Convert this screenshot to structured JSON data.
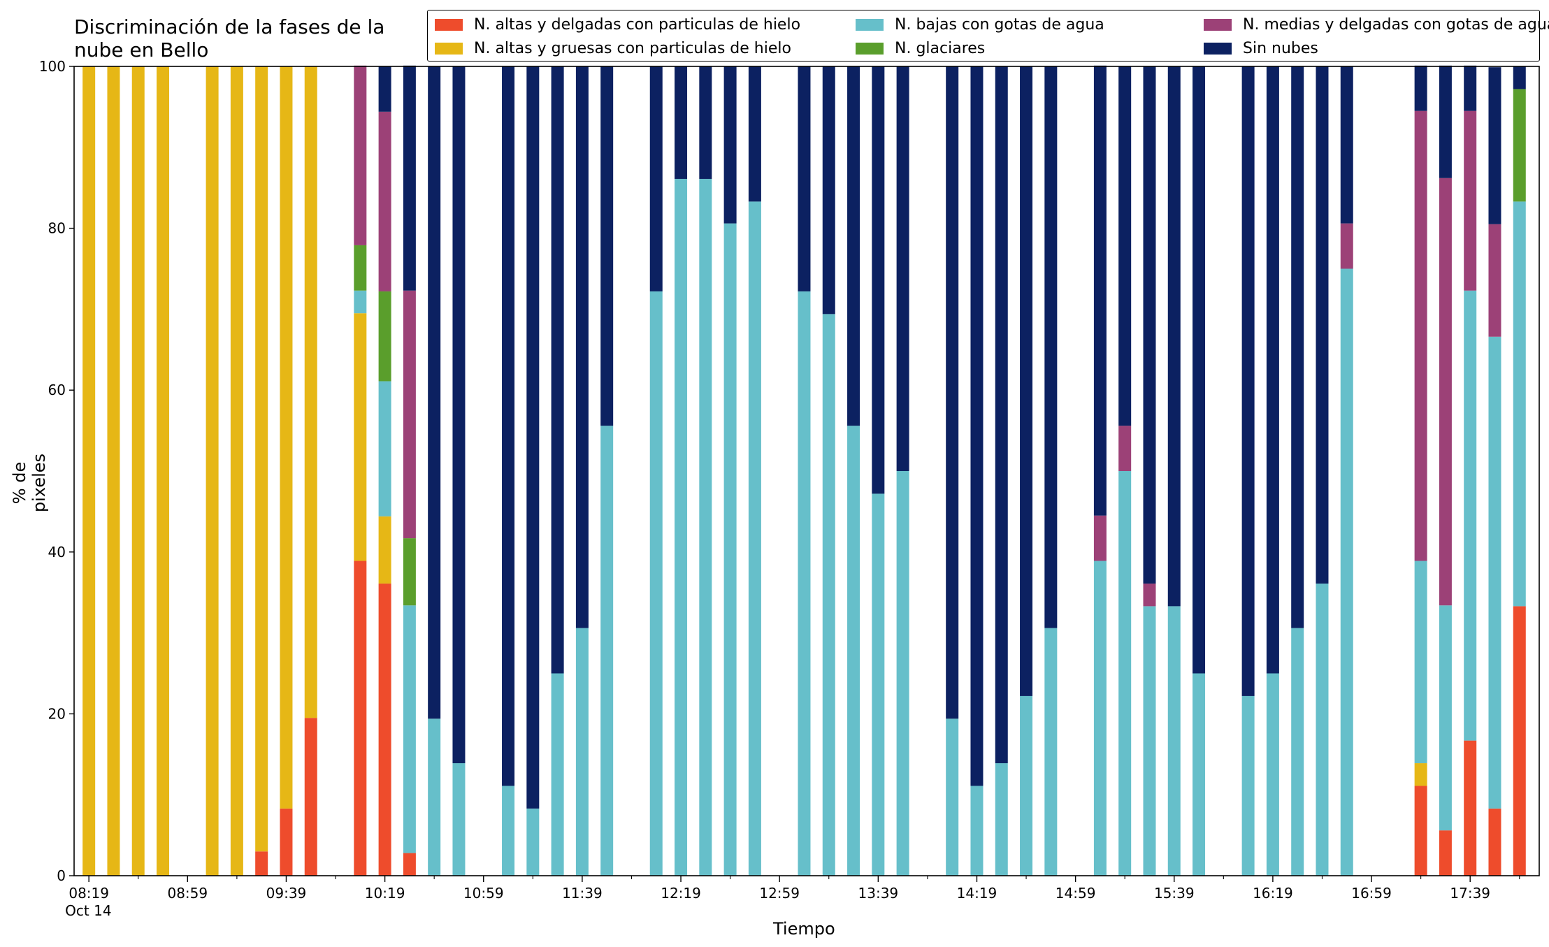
{
  "chart_data": {
    "type": "bar",
    "stacked": true,
    "title": "Discriminación de la fases de la\nnube en Bello",
    "xlabel": "Tiempo",
    "ylabel": "% de pixeles",
    "ylim": [
      0,
      100
    ],
    "yticks": [
      0,
      20,
      40,
      60,
      80,
      100
    ],
    "xticks": [
      "08:19\nOct 14",
      "08:59",
      "09:39",
      "10:19",
      "10:59",
      "11:39",
      "12:19",
      "12:59",
      "13:39",
      "14:19",
      "14:59",
      "15:39",
      "16:19",
      "16:59",
      "17:39"
    ],
    "grid": false,
    "legend_position": "top-right",
    "x_time_minutes": [
      499,
      509,
      519,
      529,
      539,
      549,
      559,
      569,
      579,
      589,
      599,
      609,
      619,
      629,
      639,
      649,
      659,
      669,
      679,
      689,
      699,
      709,
      719,
      729,
      739,
      749,
      759,
      769,
      779,
      789,
      799,
      809,
      819,
      829,
      839,
      849,
      859,
      869,
      879,
      889,
      899,
      909,
      919,
      929,
      939,
      949,
      959,
      969,
      979,
      989,
      999,
      1009,
      1019,
      1029,
      1039,
      1049,
      1059,
      1069,
      1079
    ],
    "series": [
      {
        "name": "N. altas y delgadas con particulas de hielo",
        "color": "#ee4c2c",
        "values": [
          0,
          0,
          0,
          0,
          0,
          0,
          0,
          3,
          8.3,
          19.5,
          0,
          38.9,
          36.1,
          2.8,
          0,
          0,
          0,
          0,
          0,
          0,
          0,
          0,
          0,
          0,
          0,
          0,
          0,
          0,
          0,
          0,
          0,
          0,
          0,
          0,
          0,
          0,
          0,
          0,
          0,
          0,
          0,
          0,
          0,
          0,
          0,
          0,
          0,
          0,
          0,
          0,
          0,
          0,
          0,
          0,
          11.1,
          5.6,
          16.7,
          8.3,
          33.3
        ]
      },
      {
        "name": "N. altas y gruesas con particulas de hielo",
        "color": "#e6b716",
        "values": [
          100,
          100,
          100,
          100,
          0,
          100,
          100,
          97,
          91.7,
          80.5,
          0,
          30.6,
          8.3,
          0,
          0,
          0,
          0,
          0,
          0,
          0,
          0,
          0,
          0,
          0,
          0,
          0,
          0,
          0,
          0,
          0,
          0,
          0,
          0,
          0,
          0,
          0,
          0,
          0,
          0,
          0,
          0,
          0,
          0,
          0,
          0,
          0,
          0,
          0,
          0,
          0,
          0,
          0,
          0,
          0,
          2.8,
          0,
          0,
          0,
          0
        ]
      },
      {
        "name": "N. bajas con gotas de agua",
        "color": "#66bfca",
        "values": [
          0,
          0,
          0,
          0,
          0,
          0,
          0,
          0,
          0,
          0,
          0,
          2.8,
          16.7,
          30.6,
          19.4,
          13.9,
          0,
          11.1,
          8.3,
          25,
          30.6,
          55.6,
          0,
          72.2,
          86.1,
          86.1,
          80.6,
          83.3,
          0,
          72.2,
          69.4,
          55.6,
          47.2,
          50,
          0,
          19.4,
          11.1,
          13.9,
          22.2,
          30.6,
          0,
          38.9,
          50,
          33.3,
          33.3,
          25,
          0,
          22.2,
          25,
          30.6,
          36.1,
          75,
          0,
          0,
          25,
          27.8,
          55.6,
          58.3,
          50
        ]
      },
      {
        "name": "N. glaciares",
        "color": "#5a9e2c",
        "values": [
          0,
          0,
          0,
          0,
          0,
          0,
          0,
          0,
          0,
          0,
          0,
          5.6,
          11.1,
          8.3,
          0,
          0,
          0,
          0,
          0,
          0,
          0,
          0,
          0,
          0,
          0,
          0,
          0,
          0,
          0,
          0,
          0,
          0,
          0,
          0,
          0,
          0,
          0,
          0,
          0,
          0,
          0,
          0,
          0,
          0,
          0,
          0,
          0,
          0,
          0,
          0,
          0,
          0,
          0,
          0,
          0,
          0,
          0,
          0,
          13.9
        ]
      },
      {
        "name": "N. medias y delgadas con gotas de agua",
        "color": "#9c4177",
        "values": [
          0,
          0,
          0,
          0,
          0,
          0,
          0,
          0,
          0,
          0,
          0,
          22.2,
          22.2,
          30.6,
          0,
          0,
          0,
          0,
          0,
          0,
          0,
          0,
          0,
          0,
          0,
          0,
          0,
          0,
          0,
          0,
          0,
          0,
          0,
          0,
          0,
          0,
          0,
          0,
          0,
          0,
          0,
          5.6,
          5.6,
          2.8,
          0,
          0,
          0,
          0,
          0,
          0,
          0,
          5.6,
          0,
          0,
          55.6,
          52.8,
          22.2,
          13.9,
          0
        ]
      },
      {
        "name": "Sin nubes",
        "color": "#0c2161",
        "values": [
          0,
          0,
          0,
          0,
          0,
          0,
          0,
          0,
          0,
          0,
          0,
          0,
          5.6,
          27.8,
          80.6,
          86.1,
          0,
          88.9,
          91.7,
          75,
          69.4,
          44.4,
          0,
          27.8,
          13.9,
          13.9,
          19.4,
          16.7,
          0,
          27.8,
          30.6,
          44.4,
          52.8,
          50,
          0,
          80.6,
          88.9,
          86.1,
          77.8,
          69.4,
          0,
          55.6,
          44.4,
          63.9,
          66.7,
          75,
          0,
          77.8,
          75,
          69.4,
          63.9,
          19.4,
          0,
          0,
          5.6,
          13.9,
          5.6,
          19.4,
          2.8
        ]
      }
    ]
  },
  "legend_entries": [
    {
      "label": "N. altas y delgadas con particulas de hielo",
      "color": "#ee4c2c"
    },
    {
      "label": "N. altas y gruesas con particulas de hielo",
      "color": "#e6b716"
    },
    {
      "label": "N. bajas con gotas de agua",
      "color": "#66bfca"
    },
    {
      "label": "N. glaciares",
      "color": "#5a9e2c"
    },
    {
      "label": "N. medias y delgadas con gotas de agua",
      "color": "#9c4177"
    },
    {
      "label": "Sin nubes",
      "color": "#0c2161"
    }
  ]
}
